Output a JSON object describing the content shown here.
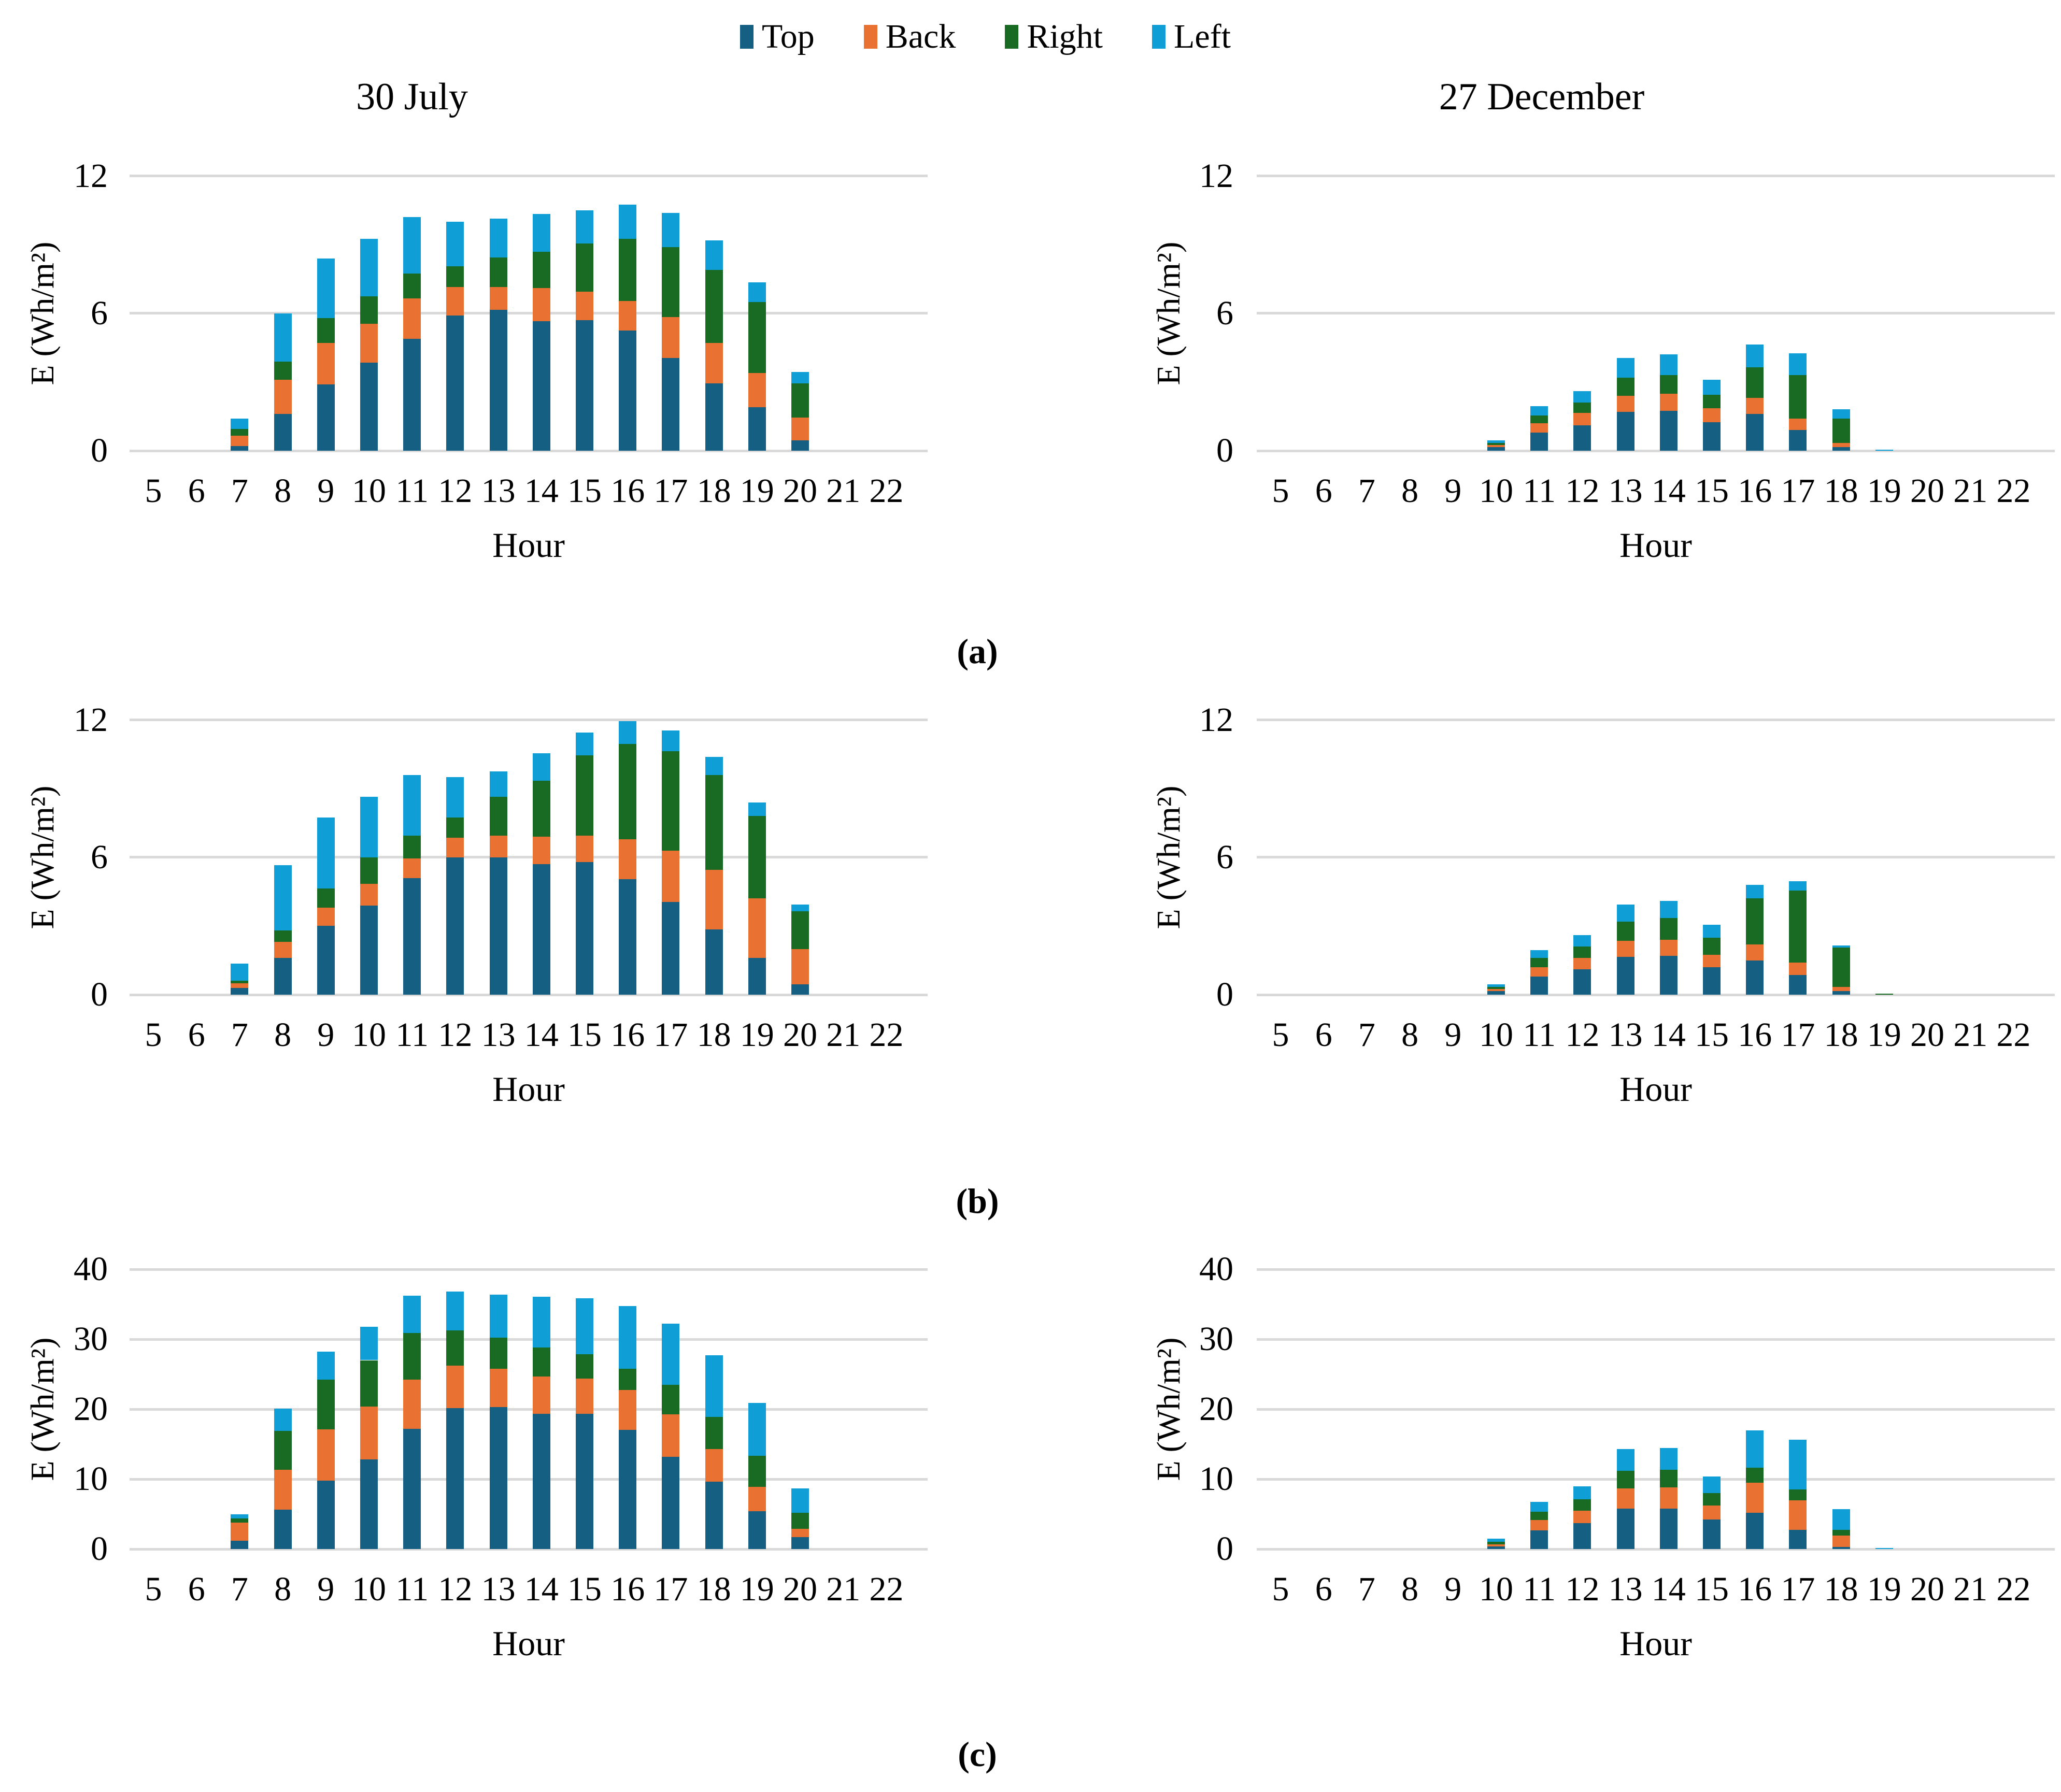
{
  "figure": {
    "panel_labels": [
      "(a)",
      "(b)",
      "(c)"
    ],
    "colors": {
      "top": "#156082",
      "back": "#E97132",
      "right": "#196B24",
      "left": "#0F9ED5",
      "gridline": "#D9D9D9",
      "text": "#000000"
    },
    "legend": [
      {
        "label": "Top",
        "color": "#156082"
      },
      {
        "label": "Back",
        "color": "#E97132"
      },
      {
        "label": "Right",
        "color": "#196B24"
      },
      {
        "label": "Left",
        "color": "#0F9ED5"
      }
    ]
  },
  "chart_data": [
    {
      "id": "panel-a-30-july",
      "panel": "a",
      "type": "bar",
      "stacked": true,
      "title": "30 July",
      "xlabel": "Hour",
      "ylabel": "E (Wh/m²)",
      "ylim": [
        0,
        12
      ],
      "yticks": [
        0,
        6,
        12
      ],
      "grid": true,
      "legend_position": "top-center",
      "categories": [
        5,
        6,
        7,
        8,
        9,
        10,
        11,
        12,
        13,
        14,
        15,
        16,
        17,
        18,
        19,
        20,
        21,
        22
      ],
      "series": [
        {
          "name": "Top",
          "color": "#156082",
          "values": [
            0,
            0,
            0.2,
            1.6,
            2.9,
            3.85,
            4.9,
            5.9,
            6.15,
            5.65,
            5.7,
            5.25,
            4.05,
            2.95,
            1.9,
            0.45,
            0,
            0
          ]
        },
        {
          "name": "Back",
          "color": "#E97132",
          "values": [
            0,
            0,
            0.45,
            1.5,
            1.8,
            1.7,
            1.75,
            1.25,
            1.0,
            1.45,
            1.25,
            1.3,
            1.8,
            1.75,
            1.5,
            1.0,
            0,
            0
          ]
        },
        {
          "name": "Right",
          "color": "#196B24",
          "values": [
            0,
            0,
            0.3,
            0.8,
            1.1,
            1.2,
            1.1,
            0.9,
            1.3,
            1.6,
            2.1,
            2.7,
            3.05,
            3.2,
            3.1,
            1.5,
            0,
            0
          ]
        },
        {
          "name": "Left",
          "color": "#0F9ED5",
          "values": [
            0,
            0,
            0.45,
            2.1,
            2.6,
            2.5,
            2.45,
            1.95,
            1.7,
            1.65,
            1.45,
            1.5,
            1.5,
            1.3,
            0.85,
            0.5,
            0,
            0
          ]
        }
      ]
    },
    {
      "id": "panel-a-27-december",
      "panel": "a",
      "type": "bar",
      "stacked": true,
      "title": "27 December",
      "xlabel": "Hour",
      "ylabel": "E (Wh/m²)",
      "ylim": [
        0,
        12
      ],
      "yticks": [
        0,
        6,
        12
      ],
      "grid": true,
      "categories": [
        5,
        6,
        7,
        8,
        9,
        10,
        11,
        12,
        13,
        14,
        15,
        16,
        17,
        18,
        19,
        20,
        21,
        22
      ],
      "series": [
        {
          "name": "Top",
          "color": "#156082",
          "values": [
            0,
            0,
            0,
            0,
            0,
            0.15,
            0.8,
            1.1,
            1.7,
            1.75,
            1.25,
            1.6,
            0.9,
            0.15,
            0,
            0,
            0,
            0
          ]
        },
        {
          "name": "Back",
          "color": "#E97132",
          "values": [
            0,
            0,
            0,
            0,
            0,
            0.1,
            0.4,
            0.55,
            0.7,
            0.75,
            0.6,
            0.7,
            0.5,
            0.2,
            0,
            0,
            0,
            0
          ]
        },
        {
          "name": "Right",
          "color": "#196B24",
          "values": [
            0,
            0,
            0,
            0,
            0,
            0.1,
            0.35,
            0.45,
            0.8,
            0.8,
            0.6,
            1.35,
            1.9,
            1.05,
            0,
            0,
            0,
            0
          ]
        },
        {
          "name": "Left",
          "color": "#0F9ED5",
          "values": [
            0,
            0,
            0,
            0,
            0,
            0.1,
            0.4,
            0.5,
            0.85,
            0.9,
            0.65,
            1.0,
            0.95,
            0.4,
            0.05,
            0,
            0,
            0
          ]
        }
      ]
    },
    {
      "id": "panel-b-30-july",
      "panel": "b",
      "type": "bar",
      "stacked": true,
      "title": "",
      "xlabel": "Hour",
      "ylabel": "E (Wh/m²)",
      "ylim": [
        0,
        12
      ],
      "yticks": [
        0,
        6,
        12
      ],
      "grid": true,
      "categories": [
        5,
        6,
        7,
        8,
        9,
        10,
        11,
        12,
        13,
        14,
        15,
        16,
        17,
        18,
        19,
        20,
        21,
        22
      ],
      "series": [
        {
          "name": "Top",
          "color": "#156082",
          "values": [
            0,
            0,
            0.3,
            1.6,
            3.0,
            3.9,
            5.1,
            6.0,
            6.0,
            5.7,
            5.8,
            5.05,
            4.05,
            2.85,
            1.6,
            0.45,
            0,
            0
          ]
        },
        {
          "name": "Back",
          "color": "#E97132",
          "values": [
            0,
            0,
            0.2,
            0.7,
            0.8,
            0.95,
            0.85,
            0.85,
            0.95,
            1.2,
            1.15,
            1.75,
            2.25,
            2.6,
            2.6,
            1.55,
            0,
            0
          ]
        },
        {
          "name": "Right",
          "color": "#196B24",
          "values": [
            0,
            0,
            0.1,
            0.5,
            0.85,
            1.15,
            1.0,
            0.9,
            1.7,
            2.45,
            3.5,
            4.15,
            4.35,
            4.15,
            3.6,
            1.65,
            0,
            0
          ]
        },
        {
          "name": "Left",
          "color": "#0F9ED5",
          "values": [
            0,
            0,
            0.75,
            2.85,
            3.1,
            2.65,
            2.65,
            1.75,
            1.1,
            1.2,
            1.0,
            1.0,
            0.9,
            0.8,
            0.6,
            0.3,
            0,
            0
          ]
        }
      ]
    },
    {
      "id": "panel-b-27-december",
      "panel": "b",
      "type": "bar",
      "stacked": true,
      "title": "",
      "xlabel": "Hour",
      "ylabel": "E (Wh/m²)",
      "ylim": [
        0,
        12
      ],
      "yticks": [
        0,
        6,
        12
      ],
      "grid": true,
      "categories": [
        5,
        6,
        7,
        8,
        9,
        10,
        11,
        12,
        13,
        14,
        15,
        16,
        17,
        18,
        19,
        20,
        21,
        22
      ],
      "series": [
        {
          "name": "Top",
          "color": "#156082",
          "values": [
            0,
            0,
            0,
            0,
            0,
            0.15,
            0.8,
            1.1,
            1.65,
            1.7,
            1.2,
            1.5,
            0.85,
            0.15,
            0,
            0,
            0,
            0
          ]
        },
        {
          "name": "Back",
          "color": "#E97132",
          "values": [
            0,
            0,
            0,
            0,
            0,
            0.1,
            0.4,
            0.5,
            0.7,
            0.7,
            0.55,
            0.7,
            0.55,
            0.2,
            0,
            0,
            0,
            0
          ]
        },
        {
          "name": "Right",
          "color": "#196B24",
          "values": [
            0,
            0,
            0,
            0,
            0,
            0.1,
            0.4,
            0.5,
            0.85,
            0.95,
            0.75,
            2.0,
            3.15,
            1.7,
            0.05,
            0,
            0,
            0
          ]
        },
        {
          "name": "Left",
          "color": "#0F9ED5",
          "values": [
            0,
            0,
            0,
            0,
            0,
            0.1,
            0.35,
            0.5,
            0.75,
            0.75,
            0.55,
            0.6,
            0.4,
            0.1,
            0,
            0,
            0,
            0
          ]
        }
      ]
    },
    {
      "id": "panel-c-30-july",
      "panel": "c",
      "type": "bar",
      "stacked": true,
      "title": "",
      "xlabel": "Hour",
      "ylabel": "E (Wh/m²)",
      "ylim": [
        0,
        40
      ],
      "yticks": [
        0,
        10,
        20,
        30,
        40
      ],
      "grid": true,
      "categories": [
        5,
        6,
        7,
        8,
        9,
        10,
        11,
        12,
        13,
        14,
        15,
        16,
        17,
        18,
        19,
        20,
        21,
        22
      ],
      "series": [
        {
          "name": "Top",
          "color": "#156082",
          "values": [
            0,
            0,
            1.2,
            5.6,
            9.8,
            12.8,
            17.2,
            20.15,
            20.3,
            19.3,
            19.35,
            17.05,
            13.2,
            9.6,
            5.4,
            1.7,
            0,
            0
          ]
        },
        {
          "name": "Back",
          "color": "#E97132",
          "values": [
            0,
            0,
            2.6,
            5.7,
            7.3,
            7.6,
            7.0,
            6.1,
            5.5,
            5.4,
            5.0,
            5.7,
            6.05,
            4.7,
            3.5,
            1.2,
            0,
            0
          ]
        },
        {
          "name": "Right",
          "color": "#196B24",
          "values": [
            0,
            0,
            0.6,
            5.6,
            7.1,
            6.6,
            6.7,
            5.0,
            4.4,
            4.15,
            3.5,
            3.05,
            4.25,
            4.6,
            4.4,
            2.3,
            0,
            0
          ]
        },
        {
          "name": "Left",
          "color": "#0F9ED5",
          "values": [
            0,
            0,
            0.6,
            3.2,
            4.0,
            4.8,
            5.3,
            5.55,
            6.2,
            7.2,
            8.0,
            8.95,
            8.75,
            8.8,
            7.6,
            3.5,
            0,
            0
          ]
        }
      ]
    },
    {
      "id": "panel-c-27-december",
      "panel": "c",
      "type": "bar",
      "stacked": true,
      "title": "",
      "xlabel": "Hour",
      "ylabel": "E (Wh/m²)",
      "ylim": [
        0,
        40
      ],
      "yticks": [
        0,
        10,
        20,
        30,
        40
      ],
      "grid": true,
      "categories": [
        5,
        6,
        7,
        8,
        9,
        10,
        11,
        12,
        13,
        14,
        15,
        16,
        17,
        18,
        19,
        20,
        21,
        22
      ],
      "series": [
        {
          "name": "Top",
          "color": "#156082",
          "values": [
            0,
            0,
            0,
            0,
            0,
            0.4,
            2.7,
            3.7,
            5.75,
            5.75,
            4.2,
            5.15,
            2.75,
            0.3,
            0,
            0,
            0,
            0
          ]
        },
        {
          "name": "Back",
          "color": "#E97132",
          "values": [
            0,
            0,
            0,
            0,
            0,
            0.3,
            1.45,
            1.8,
            2.95,
            3.1,
            2.05,
            4.3,
            4.25,
            1.65,
            0,
            0,
            0,
            0
          ]
        },
        {
          "name": "Right",
          "color": "#196B24",
          "values": [
            0,
            0,
            0,
            0,
            0,
            0.35,
            1.2,
            1.6,
            2.5,
            2.45,
            1.75,
            2.2,
            1.5,
            0.8,
            0,
            0,
            0,
            0
          ]
        },
        {
          "name": "Left",
          "color": "#0F9ED5",
          "values": [
            0,
            0,
            0,
            0,
            0,
            0.45,
            1.4,
            1.9,
            3.1,
            3.15,
            2.35,
            5.35,
            7.1,
            2.95,
            0.15,
            0,
            0,
            0
          ]
        }
      ]
    }
  ]
}
